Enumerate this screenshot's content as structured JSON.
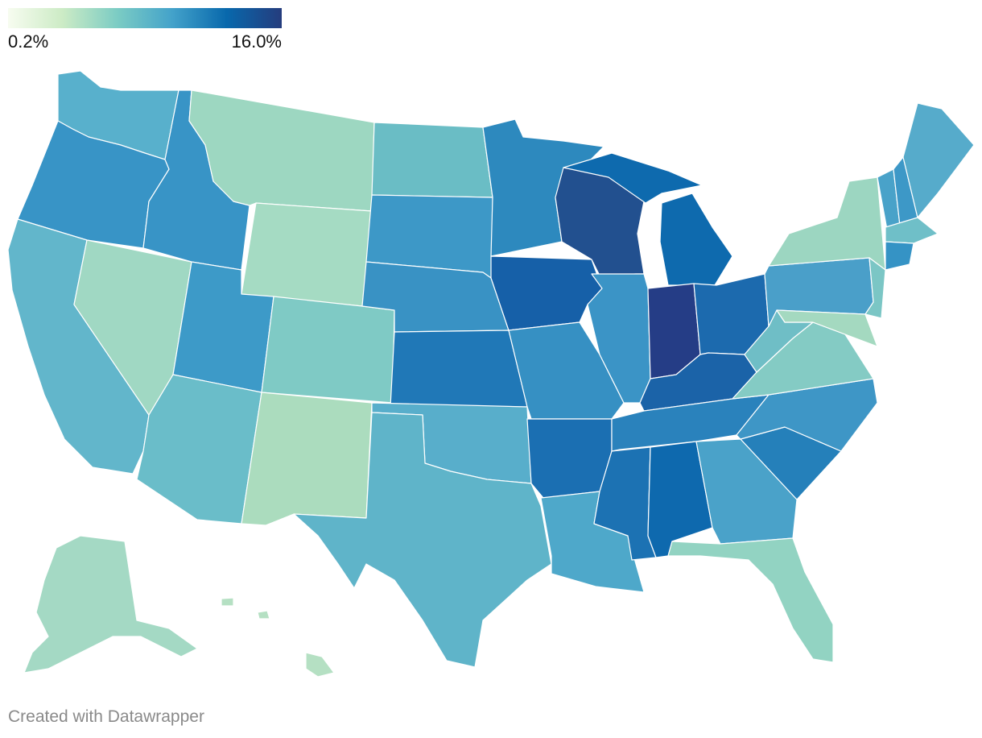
{
  "legend": {
    "min_label": "0.2%",
    "max_label": "16.0%",
    "min_value": 0.2,
    "max_value": 16.0,
    "gradient_colors": [
      "#f7fcf0",
      "#ccebc5",
      "#7bccc4",
      "#43a2ca",
      "#0868ac",
      "#253c7d"
    ]
  },
  "footer": {
    "credit": "Created with Datawrapper"
  },
  "chart_data": {
    "type": "choropleth",
    "region": "United States",
    "states": [
      {
        "abbr": "WA",
        "color": "#58b0cc"
      },
      {
        "abbr": "OR",
        "color": "#3894c6"
      },
      {
        "abbr": "CA",
        "color": "#62b6cb"
      },
      {
        "abbr": "NV",
        "color": "#a0d8c3"
      },
      {
        "abbr": "ID",
        "color": "#3894c6"
      },
      {
        "abbr": "MT",
        "color": "#9dd7c1"
      },
      {
        "abbr": "WY",
        "color": "#a5dbc3"
      },
      {
        "abbr": "UT",
        "color": "#3d9ac8"
      },
      {
        "abbr": "AZ",
        "color": "#6abdc9"
      },
      {
        "abbr": "CO",
        "color": "#7fcac5"
      },
      {
        "abbr": "NM",
        "color": "#abdcbe"
      },
      {
        "abbr": "ND",
        "color": "#6abdc5"
      },
      {
        "abbr": "SD",
        "color": "#3d98c7"
      },
      {
        "abbr": "NE",
        "color": "#3992c4"
      },
      {
        "abbr": "KS",
        "color": "#2078b7"
      },
      {
        "abbr": "OK",
        "color": "#58aecb"
      },
      {
        "abbr": "TX",
        "color": "#5fb4c9"
      },
      {
        "abbr": "MN",
        "color": "#2d89be"
      },
      {
        "abbr": "IA",
        "color": "#1660a8"
      },
      {
        "abbr": "MO",
        "color": "#3690c3"
      },
      {
        "abbr": "AR",
        "color": "#1b6fb2"
      },
      {
        "abbr": "LA",
        "color": "#4ea8ca"
      },
      {
        "abbr": "WI",
        "color": "#22508f"
      },
      {
        "abbr": "IL",
        "color": "#3b94c6"
      },
      {
        "abbr": "MI",
        "color": "#0e6aae"
      },
      {
        "abbr": "IN",
        "color": "#253d86"
      },
      {
        "abbr": "OH",
        "color": "#1c6aae"
      },
      {
        "abbr": "KY",
        "color": "#1b63a8"
      },
      {
        "abbr": "TN",
        "color": "#2a82bc"
      },
      {
        "abbr": "MS",
        "color": "#1c72b3"
      },
      {
        "abbr": "AL",
        "color": "#0e69ae"
      },
      {
        "abbr": "GA",
        "color": "#4aa2c9"
      },
      {
        "abbr": "FL",
        "color": "#92d3c2"
      },
      {
        "abbr": "SC",
        "color": "#2580ba"
      },
      {
        "abbr": "NC",
        "color": "#3e96c6"
      },
      {
        "abbr": "VA",
        "color": "#84cbc4"
      },
      {
        "abbr": "WV",
        "color": "#6fbec6"
      },
      {
        "abbr": "PA",
        "color": "#4a9fc9"
      },
      {
        "abbr": "NY",
        "color": "#9cd6c1"
      },
      {
        "abbr": "VT",
        "color": "#49a2c9"
      },
      {
        "abbr": "NH",
        "color": "#3d98c7"
      },
      {
        "abbr": "ME",
        "color": "#56abcb"
      },
      {
        "abbr": "MA",
        "color": "#6fbfc8"
      },
      {
        "abbr": "CT",
        "color": "#3593c5"
      },
      {
        "abbr": "NJ",
        "color": "#7bc6c5"
      },
      {
        "abbr": "MD",
        "color": "#a4d9c0"
      },
      {
        "abbr": "AK",
        "color": "#a4d9c4"
      },
      {
        "abbr": "HI",
        "color": "#b5e0c3"
      }
    ]
  }
}
